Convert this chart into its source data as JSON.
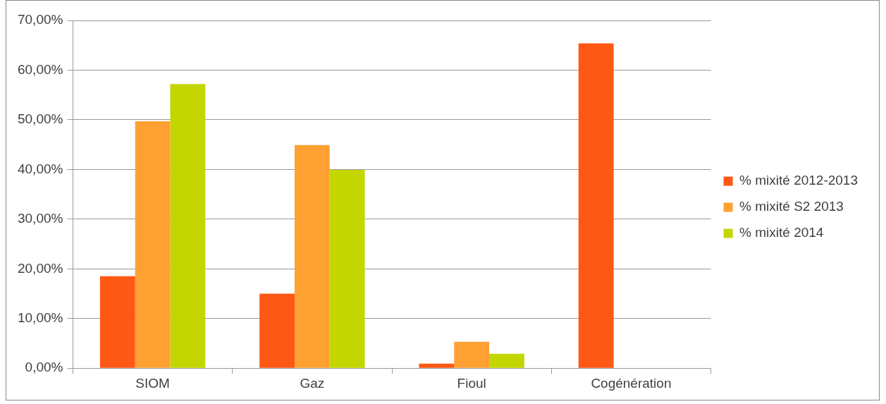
{
  "chart_data": {
    "type": "bar",
    "categories": [
      "SIOM",
      "Gaz",
      "Fioul",
      "Cogénération"
    ],
    "series": [
      {
        "name": "% mixité 2012-2013",
        "color": "#fe5815",
        "values": [
          18.5,
          15.0,
          0.9,
          65.4
        ]
      },
      {
        "name": "% mixité S2 2013",
        "color": "#ffa033",
        "values": [
          49.7,
          44.9,
          5.3,
          0
        ]
      },
      {
        "name": "% mixité 2014",
        "color": "#c4d600",
        "values": [
          57.2,
          39.9,
          2.9,
          0
        ]
      }
    ],
    "ylim": [
      0,
      70
    ],
    "yticks": [
      {
        "value": 0,
        "label": "0,00%"
      },
      {
        "value": 10,
        "label": "10,00%"
      },
      {
        "value": 20,
        "label": "20,00%"
      },
      {
        "value": 30,
        "label": "30,00%"
      },
      {
        "value": 40,
        "label": "40,00%"
      },
      {
        "value": 50,
        "label": "50,00%"
      },
      {
        "value": 60,
        "label": "60,00%"
      },
      {
        "value": 70,
        "label": "70,00%"
      }
    ],
    "grid": "y",
    "legend": "right"
  }
}
